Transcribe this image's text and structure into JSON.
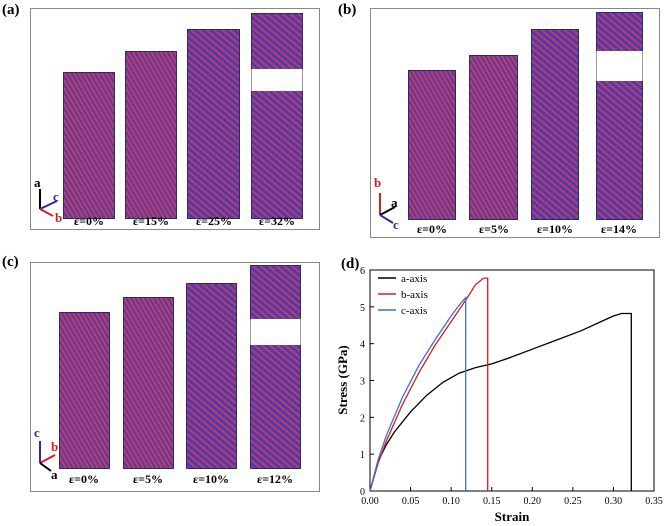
{
  "panels": {
    "a": {
      "label": "(a)",
      "strain_labels": [
        "ε=0%",
        "ε=15%",
        "ε=25%",
        "ε=32%"
      ],
      "axes": {
        "up": "a",
        "right": "c",
        "down": "b"
      },
      "colors": {
        "up": "#000000",
        "right": "#2a2aa0",
        "down": "#d42020"
      }
    },
    "b": {
      "label": "(b)",
      "strain_labels": [
        "ε=0%",
        "ε=5%",
        "ε=10%",
        "ε=14%"
      ],
      "axes": {
        "up": "b",
        "right": "a",
        "down": "c"
      },
      "colors": {
        "up": "#d42020",
        "right": "#000000",
        "down": "#2a2aa0"
      }
    },
    "c": {
      "label": "(c)",
      "strain_labels": [
        "ε=0%",
        "ε=5%",
        "ε=10%",
        "ε=12%"
      ],
      "axes": {
        "up": "c",
        "right": "b",
        "down": "a"
      },
      "colors": {
        "up": "#2a2aa0",
        "right": "#d42020",
        "down": "#000000"
      }
    },
    "d": {
      "label": "(d)"
    }
  },
  "chart_data": {
    "type": "line",
    "title": "",
    "xlabel": "Strain",
    "ylabel": "Stress (GPa)",
    "xlim": [
      0,
      0.35
    ],
    "ylim": [
      0,
      6
    ],
    "xticks": [
      0.0,
      0.05,
      0.1,
      0.15,
      0.2,
      0.25,
      0.3,
      0.35
    ],
    "xtick_labels": [
      "0.00",
      "0.05",
      "0.10",
      "0.15",
      "0.20",
      "0.25",
      "0.30",
      "0.35"
    ],
    "yticks": [
      0,
      1,
      2,
      3,
      4,
      5,
      6
    ],
    "ytick_labels": [
      "0",
      "1",
      "2",
      "3",
      "4",
      "5",
      "6"
    ],
    "legend": "top-left",
    "series": [
      {
        "name": "a-axis",
        "color": "#000000",
        "x": [
          0,
          0.01,
          0.02,
          0.03,
          0.05,
          0.07,
          0.09,
          0.11,
          0.13,
          0.15,
          0.17,
          0.2,
          0.23,
          0.26,
          0.28,
          0.3,
          0.31,
          0.322,
          0.322
        ],
        "y": [
          0,
          0.8,
          1.25,
          1.6,
          2.15,
          2.6,
          2.95,
          3.2,
          3.35,
          3.45,
          3.6,
          3.85,
          4.1,
          4.35,
          4.55,
          4.75,
          4.82,
          4.82,
          0
        ]
      },
      {
        "name": "b-axis",
        "color": "#d42020",
        "x": [
          0,
          0.01,
          0.02,
          0.04,
          0.06,
          0.08,
          0.1,
          0.12,
          0.13,
          0.14,
          0.145,
          0.145
        ],
        "y": [
          0,
          0.75,
          1.35,
          2.35,
          3.2,
          3.95,
          4.6,
          5.25,
          5.6,
          5.78,
          5.78,
          0
        ]
      },
      {
        "name": "c-axis",
        "color": "#3a6fd8",
        "x": [
          0,
          0.01,
          0.02,
          0.04,
          0.06,
          0.08,
          0.1,
          0.11,
          0.118,
          0.118
        ],
        "y": [
          0,
          0.85,
          1.5,
          2.55,
          3.4,
          4.1,
          4.75,
          5.05,
          5.25,
          0
        ]
      }
    ]
  }
}
